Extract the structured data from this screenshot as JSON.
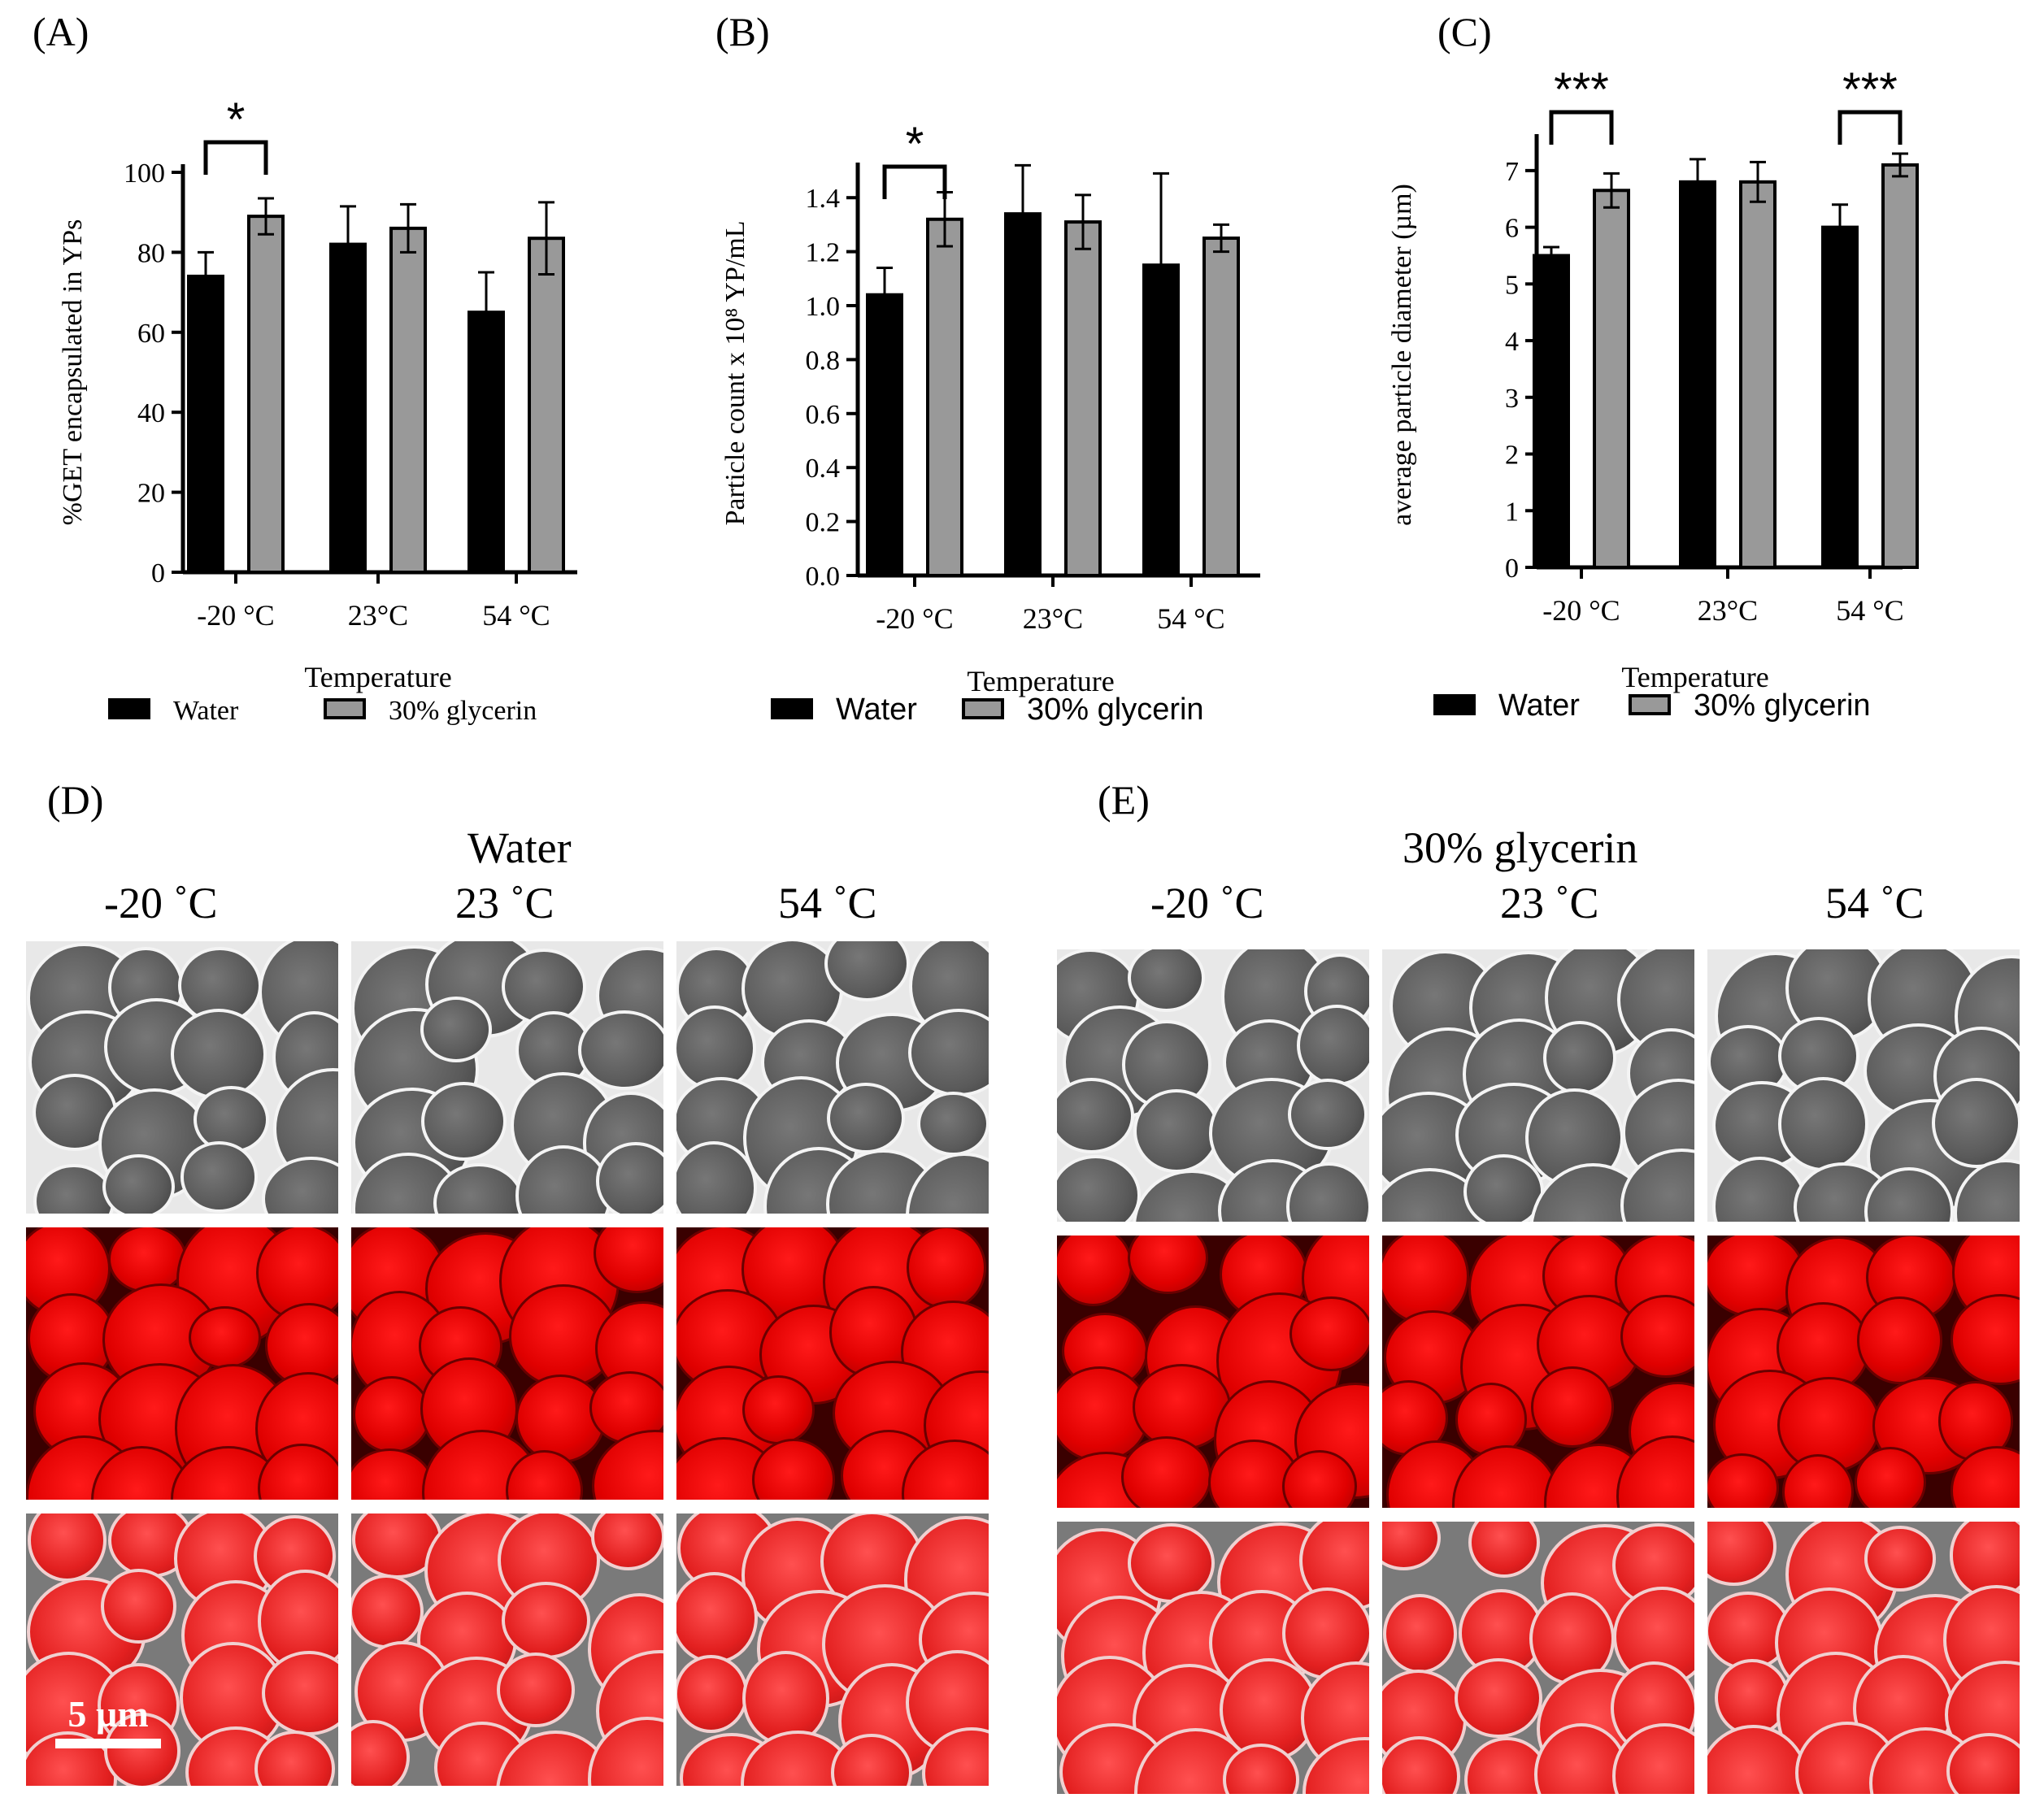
{
  "panels": {
    "A": "(A)",
    "B": "(B)",
    "C": "(C)",
    "D": "(D)",
    "E": "(E)"
  },
  "chart_data": [
    {
      "type": "bar",
      "panel": "(A)",
      "categories": [
        "-20 °C",
        "23°C",
        "54 °C"
      ],
      "series": [
        {
          "name": "Water",
          "values": [
            74,
            82,
            65
          ],
          "errors": [
            6,
            9.5,
            10
          ],
          "color": "#000000"
        },
        {
          "name": "30% glycerin",
          "values": [
            89,
            86,
            83.5
          ],
          "errors": [
            4.5,
            6,
            9
          ],
          "color": "#999999"
        }
      ],
      "ylabel": "%GET encapsulated in YPs",
      "xlabel": "Temperature",
      "ylim": [
        0,
        100
      ],
      "yticks": [
        "0",
        "20",
        "40",
        "60",
        "80",
        "100"
      ],
      "significance": [
        {
          "group": 0,
          "label": "*"
        }
      ],
      "legend": "bottom"
    },
    {
      "type": "bar",
      "panel": "(B)",
      "categories": [
        "-20 °C",
        "23°C",
        "54 °C"
      ],
      "series": [
        {
          "name": "Water",
          "values": [
            1.04,
            1.34,
            1.15
          ],
          "errors": [
            0.1,
            0.18,
            0.34
          ],
          "color": "#000000"
        },
        {
          "name": "30% glycerin",
          "values": [
            1.32,
            1.31,
            1.25
          ],
          "errors": [
            0.1,
            0.1,
            0.05
          ],
          "color": "#999999"
        }
      ],
      "ylabel": "Particle count x 10⁸ YP/mL",
      "xlabel": "Temperature",
      "ylim": [
        0,
        1.5
      ],
      "yticks": [
        "0.0",
        "0.2",
        "0.4",
        "0.6",
        "0.8",
        "1.0",
        "1.2",
        "1.4"
      ],
      "significance": [
        {
          "group": 0,
          "label": "*"
        }
      ],
      "legend": "bottom"
    },
    {
      "type": "bar",
      "panel": "(C)",
      "categories": [
        "-20 °C",
        "23°C",
        "54 °C"
      ],
      "series": [
        {
          "name": "Water",
          "values": [
            5.5,
            6.8,
            6.0
          ],
          "errors": [
            0.15,
            0.4,
            0.4
          ],
          "color": "#000000"
        },
        {
          "name": "30% glycerin",
          "values": [
            6.65,
            6.8,
            7.1
          ],
          "errors": [
            0.3,
            0.35,
            0.2
          ],
          "color": "#999999"
        }
      ],
      "ylabel": "average particle diameter  (µm)",
      "xlabel": "Temperature",
      "ylim": [
        0,
        7.5
      ],
      "yticks": [
        "0",
        "1",
        "2",
        "3",
        "4",
        "5",
        "6",
        "7"
      ],
      "significance": [
        {
          "group": 0,
          "label": "***"
        },
        {
          "group": 2,
          "label": "***"
        }
      ],
      "legend": "bottom"
    }
  ],
  "micrographs": {
    "water": {
      "title": "Water",
      "cols": [
        "-20 ˚C",
        "23 ˚C",
        "54 ˚C"
      ]
    },
    "glycerin": {
      "title": "30% glycerin",
      "cols": [
        "-20 ˚C",
        "23 ˚C",
        "54 ˚C"
      ]
    },
    "scale_bar": "5 µm"
  }
}
